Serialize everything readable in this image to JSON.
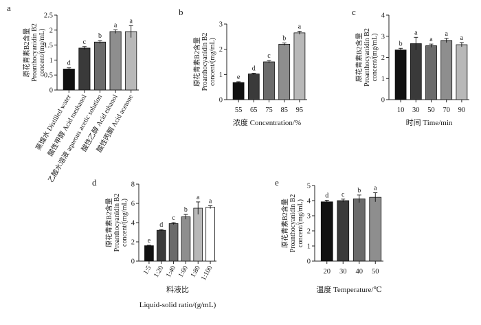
{
  "ylabel_lines": [
    "原花青素B2含量",
    "Proanthocyanidin B2",
    "concent/(mg/mL)"
  ],
  "chart_data": [
    {
      "panel": "a",
      "type": "bar",
      "categories": [
        "蒸馏水 Distilled water",
        "酸性甲醇 Acid methanol",
        "乙酸水溶液 aqueous acetic solution",
        "酸性乙醇 Acid ethanol",
        "酸性丙酮 Acid acetone"
      ],
      "values": [
        0.7,
        1.4,
        1.6,
        1.95,
        1.95
      ],
      "errors": [
        0.04,
        0.05,
        0.05,
        0.06,
        0.2
      ],
      "letters": [
        "d",
        "c",
        "b",
        "a",
        "a"
      ],
      "colors": [
        "#111111",
        "#3a3a3a",
        "#6b6b6b",
        "#8e8e8e",
        "#b8b8b8"
      ],
      "xlabel": "",
      "ylim": [
        0,
        2.5
      ],
      "yticks": [
        0,
        0.5,
        1.0,
        1.5,
        2.0,
        2.5
      ]
    },
    {
      "panel": "b",
      "type": "bar",
      "categories": [
        "55",
        "65",
        "75",
        "85",
        "95"
      ],
      "values": [
        0.68,
        1.02,
        1.5,
        2.2,
        2.65
      ],
      "errors": [
        0.03,
        0.03,
        0.05,
        0.05,
        0.06
      ],
      "letters": [
        "e",
        "d",
        "c",
        "b",
        "a"
      ],
      "colors": [
        "#111111",
        "#3a3a3a",
        "#6b6b6b",
        "#8e8e8e",
        "#b8b8b8"
      ],
      "xlabel": "浓度  Concentration/%",
      "ylim": [
        0,
        3
      ],
      "yticks": [
        0,
        1,
        2,
        3
      ]
    },
    {
      "panel": "c",
      "type": "bar",
      "categories": [
        "10",
        "30",
        "50",
        "70",
        "90"
      ],
      "values": [
        2.35,
        2.65,
        2.55,
        2.8,
        2.6
      ],
      "errors": [
        0.08,
        0.3,
        0.08,
        0.1,
        0.1
      ],
      "letters": [
        "b",
        "a",
        "a",
        "a",
        "a"
      ],
      "colors": [
        "#111111",
        "#3a3a3a",
        "#6b6b6b",
        "#8e8e8e",
        "#b8b8b8"
      ],
      "xlabel": "时间  Time/min",
      "ylim": [
        0,
        4
      ],
      "yticks": [
        0,
        1,
        2,
        3,
        4
      ]
    },
    {
      "panel": "d",
      "type": "bar",
      "categories": [
        "1:5",
        "1:20",
        "1:40",
        "1:60",
        "1:80",
        "1:100"
      ],
      "values": [
        1.6,
        3.2,
        3.9,
        4.6,
        5.5,
        5.6
      ],
      "errors": [
        0.05,
        0.08,
        0.1,
        0.25,
        0.65,
        0.15
      ],
      "letters": [
        "e",
        "d",
        "c",
        "b",
        "a",
        "a"
      ],
      "colors": [
        "#111111",
        "#3a3a3a",
        "#6b6b6b",
        "#8e8e8e",
        "#b8b8b8",
        "#ffffff"
      ],
      "xlabel": "料液比",
      "xlabel2": "Liquid-solid ratio/(g/mL)",
      "ylim": [
        0,
        8
      ],
      "yticks": [
        0,
        2,
        4,
        6,
        8
      ]
    },
    {
      "panel": "e",
      "type": "bar",
      "categories": [
        "20",
        "30",
        "40",
        "50"
      ],
      "values": [
        3.92,
        4.0,
        4.12,
        4.22
      ],
      "errors": [
        0.1,
        0.1,
        0.25,
        0.3
      ],
      "letters": [
        "d",
        "c",
        "b",
        "a"
      ],
      "colors": [
        "#111111",
        "#3a3a3a",
        "#6b6b6b",
        "#8e8e8e"
      ],
      "xlabel": "温度  Temperature/℃",
      "ylim": [
        0,
        5
      ],
      "yticks": [
        0,
        1,
        2,
        3,
        4,
        5
      ]
    }
  ]
}
